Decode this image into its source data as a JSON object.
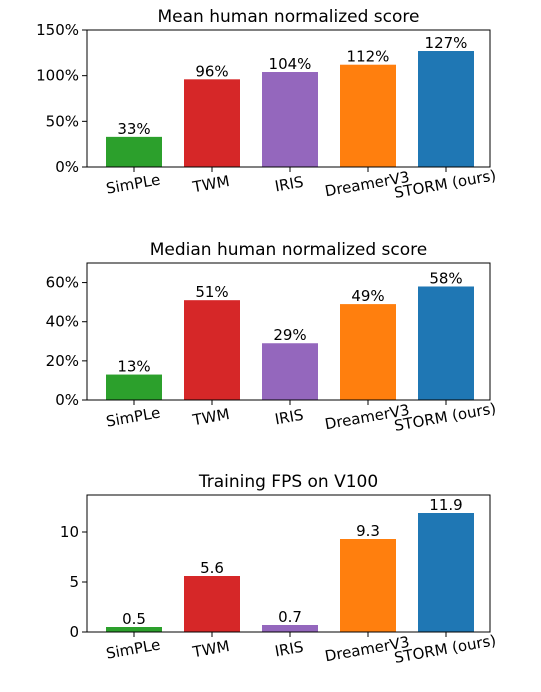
{
  "colors": {
    "SimPLe": "#2ca02c",
    "TWM": "#d62728",
    "IRIS": "#9467bd",
    "DreamerV3": "#ff7f0e",
    "STORM (ours)": "#1f77b4"
  },
  "chart_data": [
    {
      "type": "bar",
      "title": "Mean human normalized score",
      "xlabel": "",
      "ylabel": "",
      "categories": [
        "SimPLe",
        "TWM",
        "IRIS",
        "DreamerV3",
        "STORM (ours)"
      ],
      "values": [
        33,
        96,
        104,
        112,
        127
      ],
      "value_labels": [
        "33%",
        "96%",
        "104%",
        "112%",
        "127%"
      ],
      "ylim": [
        0,
        150
      ],
      "yticks": [
        0,
        50,
        100,
        150
      ],
      "ytick_labels": [
        "0%",
        "50%",
        "100%",
        "150%"
      ],
      "grid": false
    },
    {
      "type": "bar",
      "title": "Median human normalized score",
      "xlabel": "",
      "ylabel": "",
      "categories": [
        "SimPLe",
        "TWM",
        "IRIS",
        "DreamerV3",
        "STORM (ours)"
      ],
      "values": [
        13,
        51,
        29,
        49,
        58
      ],
      "value_labels": [
        "13%",
        "51%",
        "29%",
        "49%",
        "58%"
      ],
      "ylim": [
        0,
        70
      ],
      "yticks": [
        0,
        20,
        40,
        60
      ],
      "ytick_labels": [
        "0%",
        "20%",
        "40%",
        "60%"
      ],
      "grid": false
    },
    {
      "type": "bar",
      "title": "Training FPS on V100",
      "xlabel": "",
      "ylabel": "",
      "categories": [
        "SimPLe",
        "TWM",
        "IRIS",
        "DreamerV3",
        "STORM (ours)"
      ],
      "values": [
        0.5,
        5.6,
        0.7,
        9.3,
        11.9
      ],
      "value_labels": [
        "0.5",
        "5.6",
        "0.7",
        "9.3",
        "11.9"
      ],
      "ylim": [
        0,
        13.7
      ],
      "yticks": [
        0,
        5,
        10
      ],
      "ytick_labels": [
        "0",
        "5",
        "10"
      ],
      "grid": false
    }
  ]
}
